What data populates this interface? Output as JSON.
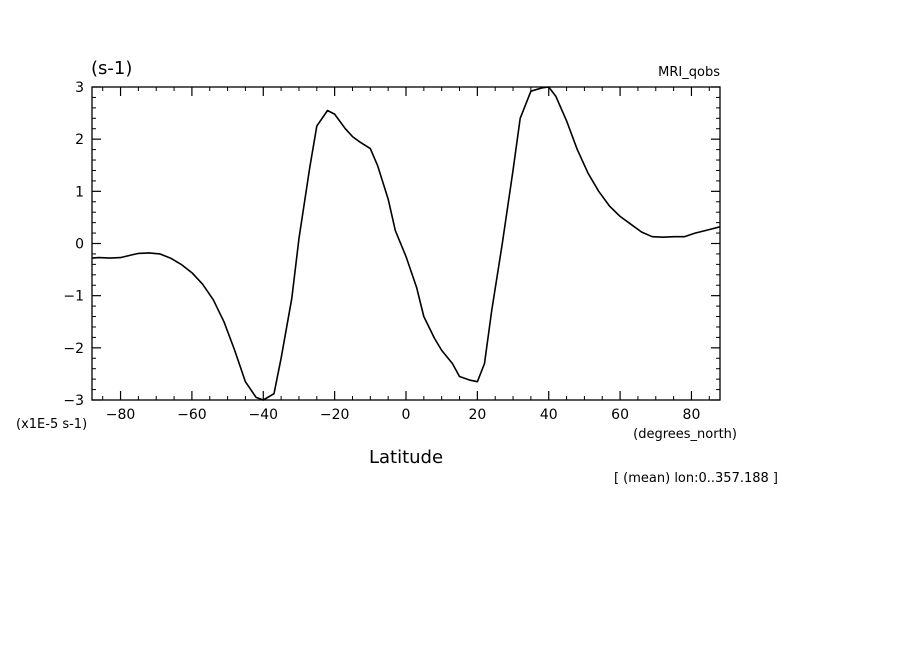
{
  "chart_data": {
    "type": "line",
    "unit_label": "(s-1)",
    "title": "MRI_qobs",
    "xlabel": "Latitude",
    "x_units": "(degrees_north)",
    "y_scale_label": "(x1E-5 s-1)",
    "note": "[ (mean) lon:0..357.188 ]",
    "xlim": [
      -88,
      88
    ],
    "ylim": [
      -3,
      3
    ],
    "x_ticks": [
      -80,
      -60,
      -40,
      -20,
      0,
      20,
      40,
      60,
      80
    ],
    "x_tick_labels": [
      "−80",
      "−60",
      "−40",
      "−20",
      "0",
      "20",
      "40",
      "60",
      "80"
    ],
    "y_ticks": [
      -3,
      -2,
      -1,
      0,
      1,
      2,
      3
    ],
    "y_tick_labels": [
      "−3",
      "−2",
      "−1",
      "0",
      "1",
      "2",
      "3"
    ],
    "grid": false,
    "series": [
      {
        "x": [
          -88,
          -86,
          -83,
          -80,
          -77,
          -75,
          -72,
          -69,
          -66,
          -63,
          -60,
          -57,
          -54,
          -51,
          -48,
          -45,
          -42,
          -40,
          -37,
          -35,
          -32,
          -30,
          -27,
          -25,
          -22,
          -20,
          -17,
          -15,
          -13,
          -10,
          -8,
          -5,
          -3,
          0,
          3,
          5,
          8,
          10,
          13,
          15,
          18,
          20,
          22,
          24,
          27,
          30,
          32,
          35,
          38,
          40,
          42,
          45,
          48,
          51,
          54,
          57,
          60,
          63,
          66,
          69,
          72,
          75,
          78,
          81,
          84,
          88
        ],
        "y": [
          -0.28,
          -0.27,
          -0.28,
          -0.27,
          -0.22,
          -0.19,
          -0.18,
          -0.2,
          -0.28,
          -0.4,
          -0.56,
          -0.78,
          -1.08,
          -1.5,
          -2.05,
          -2.65,
          -2.95,
          -3.0,
          -2.88,
          -2.2,
          -1.05,
          0.1,
          1.45,
          2.25,
          2.55,
          2.48,
          2.2,
          2.05,
          1.95,
          1.82,
          1.5,
          0.85,
          0.25,
          -0.25,
          -0.85,
          -1.4,
          -1.82,
          -2.05,
          -2.3,
          -2.55,
          -2.62,
          -2.65,
          -2.3,
          -1.3,
          0.0,
          1.4,
          2.4,
          2.92,
          2.98,
          3.0,
          2.82,
          2.35,
          1.8,
          1.35,
          1.0,
          0.72,
          0.52,
          0.37,
          0.22,
          0.13,
          0.12,
          0.13,
          0.13,
          0.2,
          0.25,
          0.32
        ]
      }
    ]
  }
}
